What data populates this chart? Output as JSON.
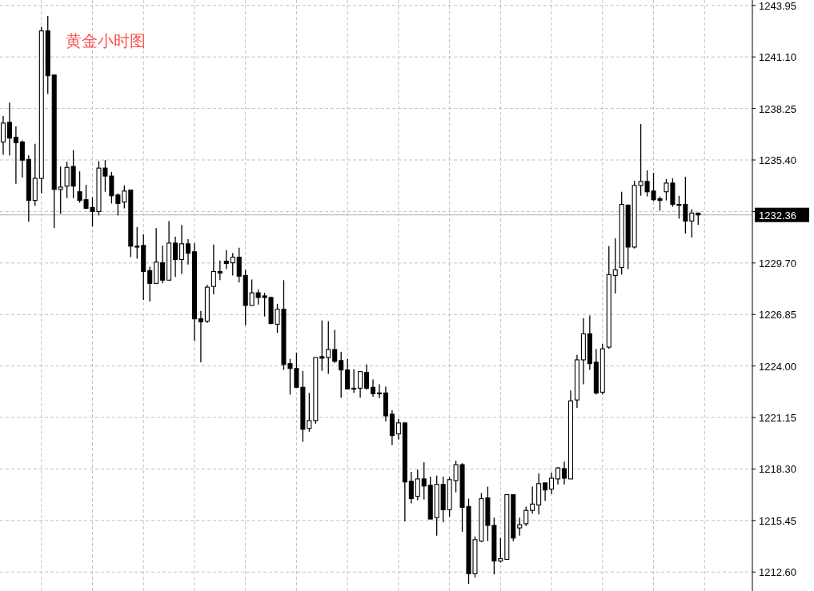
{
  "chart_data": {
    "type": "candlestick",
    "title": "黄金小时图",
    "categories": [
      null,
      null,
      null,
      null,
      null,
      null,
      null,
      null,
      null,
      null,
      null,
      null,
      null,
      null,
      null,
      null,
      null,
      null,
      null,
      null,
      null,
      null,
      null,
      null,
      null,
      null,
      null,
      null,
      null,
      null,
      null,
      null,
      null,
      null,
      null,
      null,
      null,
      null,
      null,
      null,
      null,
      null,
      null,
      null,
      null,
      null,
      null,
      null,
      null,
      null,
      null,
      null,
      null,
      null,
      null,
      null,
      null,
      null,
      null,
      null,
      null,
      null,
      null,
      null,
      null,
      null,
      null,
      null,
      null,
      null,
      null,
      null,
      null,
      null,
      null,
      null,
      null,
      null,
      null,
      null,
      null,
      null,
      null,
      null,
      null,
      null,
      null,
      null,
      null,
      null,
      null,
      null,
      null,
      null,
      null,
      null,
      null,
      null,
      null,
      null,
      null,
      null,
      null,
      null,
      null,
      null,
      null,
      null,
      null,
      null,
      null,
      null,
      null,
      null,
      null,
      null,
      null,
      null
    ],
    "ohlc": [
      [
        1236.39,
        1237.83,
        1235.69,
        1237.44
      ],
      [
        1237.48,
        1238.57,
        1235.65,
        1236.61
      ],
      [
        1236.65,
        1237.26,
        1234.08,
        1236.35
      ],
      [
        1236.39,
        1236.48,
        1234.43,
        1235.39
      ],
      [
        1235.43,
        1235.65,
        1231.98,
        1233.16
      ],
      [
        1233.16,
        1236.3,
        1232.86,
        1234.38
      ],
      [
        1234.38,
        1242.76,
        1233.55,
        1242.54
      ],
      [
        1242.54,
        1243.37,
        1239.05,
        1240.06
      ],
      [
        1240.1,
        1240.1,
        1231.63,
        1233.77
      ],
      [
        1233.77,
        1235.04,
        1232.42,
        1233.9
      ],
      [
        1233.95,
        1235.3,
        1233.29,
        1234.99
      ],
      [
        1235.04,
        1235.95,
        1233.29,
        1233.95
      ],
      [
        1233.64,
        1234.77,
        1233.03,
        1233.16
      ],
      [
        1233.2,
        1234.03,
        1232.68,
        1232.72
      ],
      [
        1232.77,
        1233.33,
        1231.72,
        1232.55
      ],
      [
        1232.55,
        1235.34,
        1232.33,
        1234.95
      ],
      [
        1234.95,
        1235.39,
        1233.64,
        1234.51
      ],
      [
        1234.51,
        1234.73,
        1232.99,
        1233.42
      ],
      [
        1233.46,
        1233.55,
        1232.33,
        1232.99
      ],
      [
        1233.07,
        1233.99,
        1232.72,
        1233.68
      ],
      [
        1233.73,
        1233.73,
        1230.02,
        1230.63
      ],
      [
        1230.63,
        1231.68,
        1229.93,
        1230.63
      ],
      [
        1230.67,
        1231.28,
        1227.66,
        1229.23
      ],
      [
        1229.28,
        1229.49,
        1227.57,
        1228.57
      ],
      [
        1228.57,
        1231.63,
        1228.53,
        1229.75
      ],
      [
        1229.71,
        1230.67,
        1228.57,
        1228.75
      ],
      [
        1228.75,
        1232.02,
        1228.75,
        1230.8
      ],
      [
        1230.8,
        1231.15,
        1228.93,
        1229.89
      ],
      [
        1229.89,
        1231.81,
        1229.1,
        1230.76
      ],
      [
        1230.76,
        1231.02,
        1229.62,
        1230.24
      ],
      [
        1230.32,
        1230.8,
        1225.39,
        1226.61
      ],
      [
        1226.61,
        1227.05,
        1224.21,
        1226.44
      ],
      [
        1226.48,
        1228.49,
        1226.39,
        1228.36
      ],
      [
        1228.4,
        1230.72,
        1227.97,
        1229.23
      ],
      [
        1229.23,
        1229.84,
        1228.75,
        1229.14
      ],
      [
        1229.8,
        1230.41,
        1229.36,
        1229.67
      ],
      [
        1229.71,
        1230.24,
        1229.01,
        1230.02
      ],
      [
        1230.02,
        1230.54,
        1228.62,
        1228.97
      ],
      [
        1229.01,
        1229.32,
        1226.26,
        1227.35
      ],
      [
        1227.35,
        1228.79,
        1227.35,
        1228.05
      ],
      [
        1228.05,
        1228.23,
        1227.4,
        1227.79
      ],
      [
        1227.88,
        1228.05,
        1226.74,
        1227.79
      ],
      [
        1227.79,
        1227.84,
        1226.31,
        1226.35
      ],
      [
        1226.31,
        1227.44,
        1225.83,
        1227.14
      ],
      [
        1227.14,
        1228.75,
        1223.78,
        1224.08
      ],
      [
        1224.13,
        1224.39,
        1222.42,
        1223.86
      ],
      [
        1223.86,
        1224.74,
        1222.82,
        1222.82
      ],
      [
        1222.82,
        1223.73,
        1219.8,
        1220.5
      ],
      [
        1220.55,
        1222.51,
        1220.37,
        1220.98
      ],
      [
        1220.98,
        1224.47,
        1220.81,
        1224.47
      ],
      [
        1224.52,
        1226.52,
        1223.73,
        1224.43
      ],
      [
        1224.47,
        1226.48,
        1223.56,
        1224.91
      ],
      [
        1224.91,
        1226.0,
        1224.17,
        1224.26
      ],
      [
        1224.3,
        1224.78,
        1222.25,
        1223.78
      ],
      [
        1223.78,
        1224.39,
        1222.73,
        1222.73
      ],
      [
        1222.77,
        1223.82,
        1222.51,
        1222.77
      ],
      [
        1222.77,
        1223.69,
        1222.25,
        1223.69
      ],
      [
        1223.64,
        1224.08,
        1222.69,
        1222.77
      ],
      [
        1222.82,
        1223.25,
        1222.29,
        1222.47
      ],
      [
        1222.51,
        1222.99,
        1222.21,
        1222.51
      ],
      [
        1222.51,
        1222.86,
        1220.94,
        1221.24
      ],
      [
        1221.33,
        1221.55,
        1219.63,
        1220.15
      ],
      [
        1220.24,
        1221.07,
        1219.93,
        1220.85
      ],
      [
        1220.85,
        1220.85,
        1215.4,
        1217.58
      ],
      [
        1217.62,
        1218.14,
        1216.4,
        1216.66
      ],
      [
        1216.79,
        1218.27,
        1216.57,
        1217.75
      ],
      [
        1217.75,
        1218.67,
        1216.62,
        1217.36
      ],
      [
        1217.4,
        1217.88,
        1215.53,
        1215.53
      ],
      [
        1215.61,
        1217.93,
        1214.61,
        1217.45
      ],
      [
        1217.45,
        1217.88,
        1215.35,
        1216.05
      ],
      [
        1216.05,
        1217.84,
        1215.66,
        1217.71
      ],
      [
        1217.66,
        1218.76,
        1217.01,
        1218.54
      ],
      [
        1218.54,
        1218.62,
        1214.83,
        1216.18
      ],
      [
        1216.22,
        1216.66,
        1211.95,
        1212.51
      ],
      [
        1212.51,
        1214.57,
        1212.3,
        1214.39
      ],
      [
        1214.31,
        1216.97,
        1214.26,
        1216.66
      ],
      [
        1216.7,
        1217.32,
        1214.31,
        1215.18
      ],
      [
        1215.18,
        1215.61,
        1212.47,
        1213.21
      ],
      [
        1213.21,
        1214.48,
        1213.13,
        1213.34
      ],
      [
        1213.3,
        1216.88,
        1213.3,
        1216.88
      ],
      [
        1216.88,
        1216.88,
        1214.31,
        1214.48
      ],
      [
        1215.04,
        1215.61,
        1214.61,
        1215.22
      ],
      [
        1215.27,
        1216.22,
        1215.14,
        1216.01
      ],
      [
        1216.01,
        1217.32,
        1215.83,
        1216.36
      ],
      [
        1216.31,
        1218.06,
        1215.79,
        1217.49
      ],
      [
        1217.53,
        1217.53,
        1216.53,
        1217.14
      ],
      [
        1217.19,
        1218.1,
        1216.92,
        1217.79
      ],
      [
        1217.75,
        1218.41,
        1217.45,
        1218.36
      ],
      [
        1218.32,
        1218.71,
        1217.45,
        1217.79
      ],
      [
        1217.75,
        1222.64,
        1217.75,
        1222.07
      ],
      [
        1222.12,
        1224.61,
        1221.68,
        1224.34
      ],
      [
        1224.34,
        1226.65,
        1222.99,
        1225.78
      ],
      [
        1225.78,
        1226.79,
        1223.78,
        1224.13
      ],
      [
        1224.21,
        1224.95,
        1222.42,
        1222.51
      ],
      [
        1222.55,
        1225.22,
        1222.42,
        1224.95
      ],
      [
        1225.04,
        1230.63,
        1224.95,
        1229.06
      ],
      [
        1229.01,
        1231.06,
        1228.01,
        1229.32
      ],
      [
        1229.45,
        1233.64,
        1229.06,
        1232.94
      ],
      [
        1232.9,
        1232.94,
        1229.36,
        1230.58
      ],
      [
        1230.58,
        1234.25,
        1230.5,
        1233.99
      ],
      [
        1233.99,
        1237.39,
        1233.42,
        1234.21
      ],
      [
        1234.21,
        1234.82,
        1233.38,
        1233.64
      ],
      [
        1233.68,
        1234.69,
        1233.12,
        1233.2
      ],
      [
        1233.25,
        1233.38,
        1232.59,
        1233.16
      ],
      [
        1233.64,
        1234.34,
        1233.16,
        1234.12
      ],
      [
        1234.12,
        1234.38,
        1232.81,
        1232.94
      ],
      [
        1232.94,
        1233.42,
        1232.15,
        1232.94
      ],
      [
        1232.94,
        1234.47,
        1231.33,
        1232.02
      ],
      [
        1232.02,
        1232.68,
        1231.11,
        1232.46
      ],
      [
        1232.46,
        1232.46,
        1231.81,
        1232.36
      ],
      null,
      null,
      null,
      null,
      null,
      null,
      null,
      null
    ],
    "ylim": [
      1211.55,
      1244.25
    ],
    "yticks": [
      {
        "value": 1212.6,
        "label": "1212.60"
      },
      {
        "value": 1215.45,
        "label": "1215.45"
      },
      {
        "value": 1218.3,
        "label": "1218.30"
      },
      {
        "value": 1221.15,
        "label": "1221.15"
      },
      {
        "value": 1224.0,
        "label": "1224.00"
      },
      {
        "value": 1226.85,
        "label": "1226.85"
      },
      {
        "value": 1229.7,
        "label": "1229.70"
      },
      {
        "value": 1232.55,
        "label": null
      },
      {
        "value": 1235.4,
        "label": "1235.40"
      },
      {
        "value": 1238.25,
        "label": "1238.25"
      },
      {
        "value": 1241.1,
        "label": "1241.10"
      },
      {
        "value": 1243.95,
        "label": "1243.95"
      }
    ],
    "grid": true,
    "tick_labels": "y",
    "ref_lines": [
      {
        "axis": "y",
        "value": 1232.36,
        "label": "1232.36",
        "color": "#c0c0c0"
      }
    ]
  }
}
